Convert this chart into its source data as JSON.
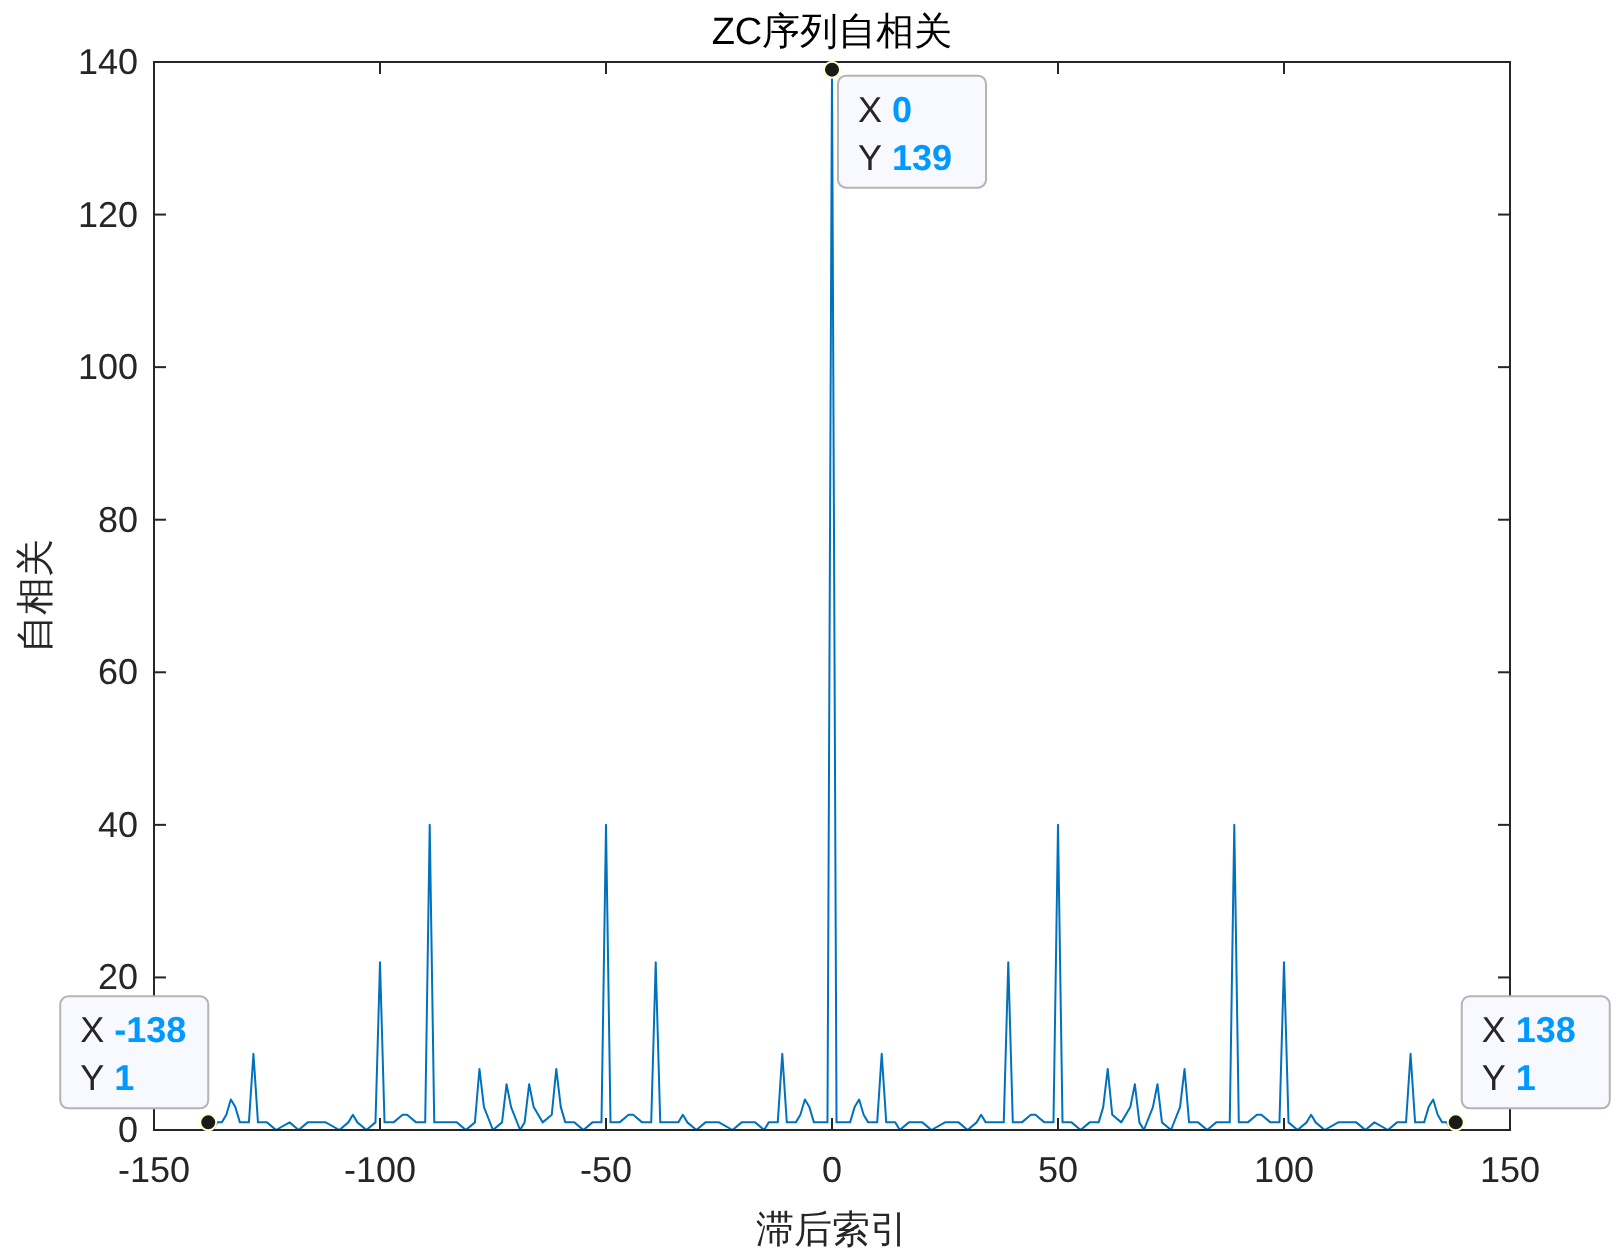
{
  "chart_data": {
    "type": "line",
    "title": "ZC序列自相关",
    "xlabel": "滞后索引",
    "ylabel": "自相关",
    "xlim": [
      -150,
      150
    ],
    "xticks": [
      -150,
      -100,
      -50,
      0,
      50,
      100,
      150
    ],
    "ylim": [
      0,
      140
    ],
    "yticks": [
      0,
      20,
      40,
      60,
      80,
      100,
      120,
      140
    ],
    "grid": false,
    "marker": "none",
    "line_style": "solid",
    "series": [
      {
        "color": "#0072bd",
        "x": [
          -138,
          -137,
          -136,
          -135,
          -134,
          -133,
          -132,
          -131,
          -129,
          -128,
          -127,
          -125,
          -123,
          -120,
          -118,
          -116,
          -112,
          -109,
          -107,
          -106,
          -105,
          -103,
          -101,
          -100,
          -99,
          -97,
          -95,
          -94,
          -92,
          -90,
          -89,
          -88,
          -87,
          -85,
          -83,
          -81,
          -79,
          -78,
          -77,
          -75,
          -73,
          -72,
          -71,
          -69,
          -68,
          -67,
          -66,
          -64,
          -62,
          -61,
          -60,
          -59,
          -57,
          -55,
          -53,
          -51,
          -50,
          -49,
          -47,
          -45,
          -44,
          -42,
          -40,
          -39,
          -38,
          -36,
          -34,
          -33,
          -32,
          -30,
          -28,
          -25,
          -22,
          -20,
          -17,
          -15,
          -14,
          -12,
          -11,
          -10,
          -8,
          -7,
          -6,
          -5,
          -4,
          -2,
          -1,
          0,
          1,
          2,
          4,
          5,
          6,
          7,
          8,
          10,
          11,
          12,
          14,
          15,
          17,
          20,
          22,
          25,
          28,
          30,
          32,
          33,
          34,
          36,
          38,
          39,
          40,
          42,
          44,
          45,
          47,
          49,
          50,
          51,
          53,
          55,
          57,
          59,
          60,
          61,
          62,
          64,
          66,
          67,
          68,
          69,
          71,
          72,
          73,
          75,
          77,
          78,
          79,
          81,
          83,
          85,
          87,
          88,
          89,
          90,
          92,
          94,
          95,
          97,
          99,
          100,
          101,
          103,
          105,
          106,
          107,
          109,
          112,
          116,
          118,
          120,
          123,
          125,
          127,
          128,
          129,
          131,
          132,
          133,
          134,
          135,
          136,
          137,
          138
        ],
        "values": [
          1,
          0,
          1,
          1,
          2,
          4,
          3,
          1,
          1,
          10,
          1,
          1,
          0,
          1,
          0,
          1,
          1,
          0,
          1,
          2,
          1,
          0,
          1,
          22,
          1,
          1,
          2,
          2,
          1,
          1,
          40,
          1,
          1,
          1,
          1,
          0,
          1,
          8,
          3,
          0,
          1,
          6,
          3,
          0,
          1,
          6,
          3,
          1,
          2,
          8,
          3,
          1,
          1,
          0,
          1,
          1,
          40,
          1,
          1,
          2,
          2,
          1,
          1,
          22,
          1,
          1,
          1,
          2,
          1,
          0,
          1,
          1,
          0,
          1,
          1,
          0,
          1,
          1,
          10,
          1,
          1,
          2,
          4,
          3,
          1,
          1,
          1,
          139,
          1,
          1,
          1,
          3,
          4,
          2,
          1,
          1,
          10,
          1,
          1,
          0,
          1,
          1,
          0,
          1,
          1,
          0,
          1,
          2,
          1,
          1,
          1,
          22,
          1,
          1,
          2,
          2,
          1,
          1,
          40,
          1,
          1,
          0,
          1,
          1,
          3,
          8,
          2,
          1,
          3,
          6,
          1,
          0,
          3,
          6,
          1,
          0,
          3,
          8,
          1,
          1,
          0,
          1,
          1,
          1,
          40,
          1,
          1,
          2,
          2,
          1,
          1,
          22,
          1,
          0,
          1,
          2,
          1,
          0,
          1,
          1,
          0,
          1,
          0,
          1,
          1,
          10,
          1,
          1,
          3,
          4,
          2,
          1,
          1,
          0,
          1
        ]
      }
    ],
    "annotations": [
      {
        "text": "X -138\nY 1",
        "x": -138,
        "y": 1
      },
      {
        "text": "X 0\nY 139",
        "x": 0,
        "y": 139
      },
      {
        "text": "X 138\nY 1",
        "x": 138,
        "y": 1
      }
    ]
  }
}
